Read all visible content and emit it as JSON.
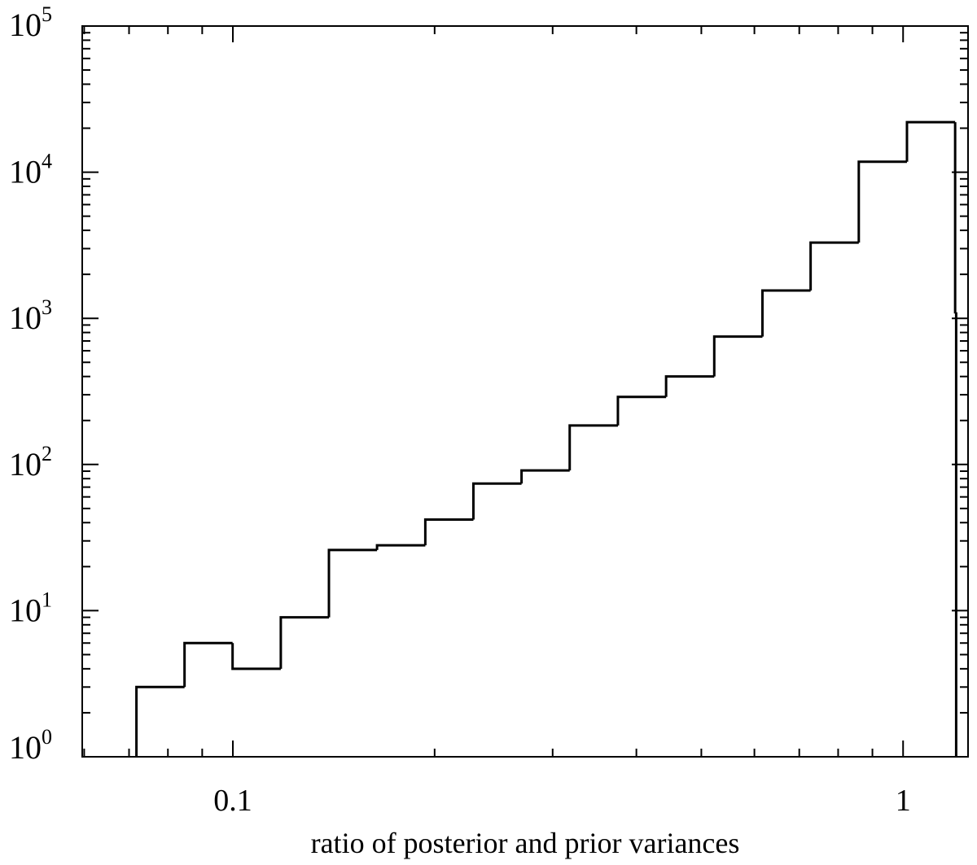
{
  "chart_data": {
    "type": "histogram",
    "xlabel": "ratio of posterior and prior variances",
    "ylabel": "",
    "x_scale": "log",
    "y_scale": "log",
    "xlim": [
      0.0596,
      1.25
    ],
    "ylim": [
      1,
      100000
    ],
    "grid": false,
    "x_tick_labels": [
      {
        "value": 0.1,
        "label": "0.1"
      },
      {
        "value": 1,
        "label": "1"
      }
    ],
    "y_tick_labels": [
      {
        "value": 1,
        "base": "10",
        "exp": "0"
      },
      {
        "value": 10,
        "base": "10",
        "exp": "1"
      },
      {
        "value": 100,
        "base": "10",
        "exp": "2"
      },
      {
        "value": 1000,
        "base": "10",
        "exp": "3"
      },
      {
        "value": 10000,
        "base": "10",
        "exp": "4"
      },
      {
        "value": 100000,
        "base": "10",
        "exp": "5"
      }
    ],
    "bins": [
      {
        "x0": 0.0718,
        "x1": 0.0847,
        "count": 3
      },
      {
        "x0": 0.0847,
        "x1": 0.0999,
        "count": 6
      },
      {
        "x0": 0.0999,
        "x1": 0.1179,
        "count": 4
      },
      {
        "x0": 0.1179,
        "x1": 0.1391,
        "count": 9
      },
      {
        "x0": 0.1391,
        "x1": 0.1641,
        "count": 26
      },
      {
        "x0": 0.1641,
        "x1": 0.1937,
        "count": 28
      },
      {
        "x0": 0.1937,
        "x1": 0.2285,
        "count": 42
      },
      {
        "x0": 0.2285,
        "x1": 0.2696,
        "count": 74
      },
      {
        "x0": 0.2696,
        "x1": 0.3181,
        "count": 91
      },
      {
        "x0": 0.3181,
        "x1": 0.3754,
        "count": 185
      },
      {
        "x0": 0.3754,
        "x1": 0.443,
        "count": 290
      },
      {
        "x0": 0.443,
        "x1": 0.5227,
        "count": 400
      },
      {
        "x0": 0.5227,
        "x1": 0.6168,
        "count": 750
      },
      {
        "x0": 0.6168,
        "x1": 0.7278,
        "count": 1550
      },
      {
        "x0": 0.7278,
        "x1": 0.8588,
        "count": 3300
      },
      {
        "x0": 0.8588,
        "x1": 1.0134,
        "count": 11800
      },
      {
        "x0": 1.0134,
        "x1": 1.1958,
        "count": 22000
      },
      {
        "x0": 1.1958,
        "x1": 1.2,
        "count": 1100
      }
    ]
  }
}
